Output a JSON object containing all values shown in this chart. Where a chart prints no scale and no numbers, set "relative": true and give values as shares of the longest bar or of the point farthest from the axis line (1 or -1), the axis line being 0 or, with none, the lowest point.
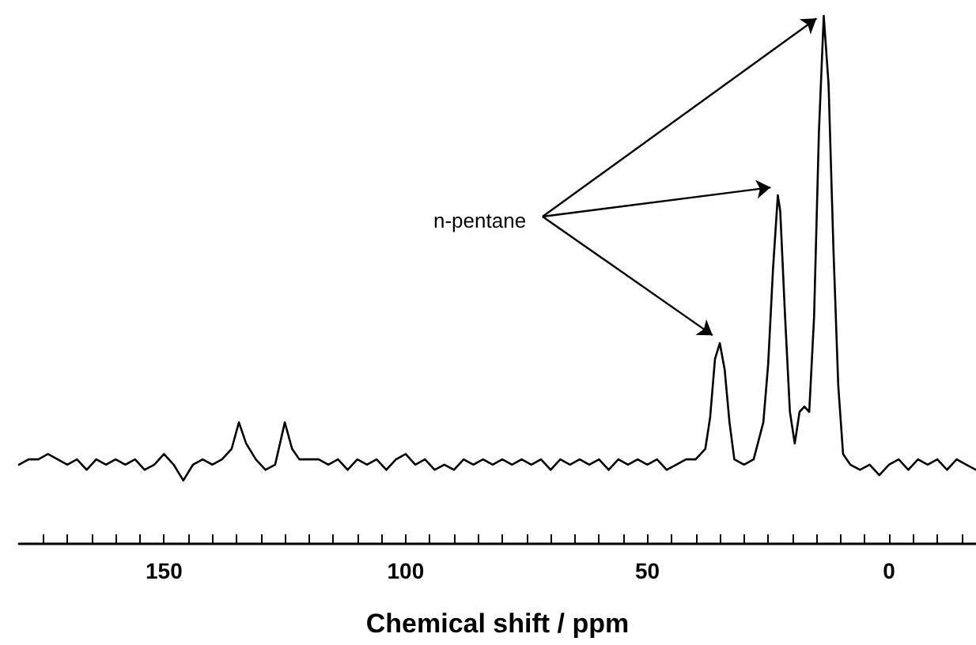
{
  "chart_data": {
    "type": "line",
    "relative": true,
    "xlabel": "Chemical shift / ppm",
    "annotations": [
      "n-pentane"
    ],
    "xlim": [
      180,
      -18
    ],
    "xticks": [
      {
        "value": 175,
        "label": null
      },
      {
        "value": 170,
        "label": null
      },
      {
        "value": 165,
        "label": null
      },
      {
        "value": 160,
        "label": null
      },
      {
        "value": 155,
        "label": null
      },
      150,
      {
        "value": 145,
        "label": null
      },
      {
        "value": 140,
        "label": null
      },
      {
        "value": 135,
        "label": null
      },
      {
        "value": 130,
        "label": null
      },
      {
        "value": 125,
        "label": null
      },
      {
        "value": 120,
        "label": null
      },
      {
        "value": 115,
        "label": null
      },
      {
        "value": 110,
        "label": null
      },
      {
        "value": 105,
        "label": null
      },
      100,
      {
        "value": 95,
        "label": null
      },
      {
        "value": 90,
        "label": null
      },
      {
        "value": 85,
        "label": null
      },
      {
        "value": 80,
        "label": null
      },
      {
        "value": 75,
        "label": null
      },
      {
        "value": 70,
        "label": null
      },
      {
        "value": 65,
        "label": null
      },
      {
        "value": 60,
        "label": null
      },
      {
        "value": 55,
        "label": null
      },
      50,
      {
        "value": 45,
        "label": null
      },
      {
        "value": 40,
        "label": null
      },
      {
        "value": 35,
        "label": null
      },
      {
        "value": 30,
        "label": null
      },
      {
        "value": 25,
        "label": null
      },
      {
        "value": 20,
        "label": null
      },
      {
        "value": 15,
        "label": null
      },
      {
        "value": 10,
        "label": null
      },
      {
        "value": 5,
        "label": null
      },
      0,
      {
        "value": -5,
        "label": null
      },
      {
        "value": -10,
        "label": null
      },
      {
        "value": -15,
        "label": null
      }
    ],
    "grid": false,
    "marker": "none",
    "line_style": "solid",
    "series": [
      {
        "color": "#000000",
        "x": [
          180,
          178,
          176,
          174,
          172,
          170,
          168,
          166,
          164,
          162,
          160,
          158,
          156,
          154,
          152,
          150,
          148,
          146,
          144,
          142,
          140,
          138,
          136,
          134.5,
          133,
          131,
          129,
          127,
          125,
          123.5,
          122,
          120,
          118,
          116,
          114,
          112,
          110,
          108,
          106,
          104,
          102,
          100,
          98,
          96,
          94,
          92,
          90,
          88,
          86,
          84,
          82,
          80,
          78,
          76,
          74,
          72,
          70,
          68,
          66,
          64,
          62,
          60,
          58,
          56,
          54,
          52,
          50,
          48,
          46,
          44,
          42,
          40,
          38,
          37,
          36,
          35,
          34,
          33,
          32,
          30,
          28,
          26,
          25,
          24,
          23,
          22.5,
          21.5,
          20.5,
          19.5,
          18.5,
          17.5,
          16.5,
          15.5,
          14.5,
          13.5,
          12.5,
          11.5,
          10.5,
          9.5,
          8,
          6,
          4,
          2,
          0,
          -2,
          -4,
          -6,
          -8,
          -10,
          -12,
          -14,
          -16,
          -18
        ],
        "values": [
          0.15,
          0.16,
          0.16,
          0.17,
          0.16,
          0.15,
          0.16,
          0.14,
          0.16,
          0.15,
          0.16,
          0.15,
          0.16,
          0.14,
          0.15,
          0.17,
          0.15,
          0.12,
          0.15,
          0.16,
          0.15,
          0.16,
          0.18,
          0.23,
          0.19,
          0.16,
          0.14,
          0.15,
          0.23,
          0.18,
          0.16,
          0.16,
          0.16,
          0.15,
          0.16,
          0.14,
          0.16,
          0.15,
          0.16,
          0.14,
          0.16,
          0.17,
          0.15,
          0.16,
          0.14,
          0.15,
          0.14,
          0.16,
          0.15,
          0.16,
          0.15,
          0.16,
          0.15,
          0.16,
          0.15,
          0.16,
          0.14,
          0.16,
          0.15,
          0.16,
          0.15,
          0.16,
          0.14,
          0.16,
          0.15,
          0.16,
          0.15,
          0.16,
          0.14,
          0.15,
          0.16,
          0.16,
          0.18,
          0.24,
          0.35,
          0.38,
          0.33,
          0.23,
          0.16,
          0.15,
          0.16,
          0.23,
          0.34,
          0.52,
          0.66,
          0.63,
          0.43,
          0.25,
          0.19,
          0.25,
          0.26,
          0.25,
          0.43,
          0.78,
          1,
          0.87,
          0.56,
          0.3,
          0.17,
          0.15,
          0.14,
          0.15,
          0.13,
          0.15,
          0.16,
          0.14,
          0.16,
          0.15,
          0.16,
          0.14,
          0.16,
          0.15,
          0.14
        ]
      }
    ]
  }
}
